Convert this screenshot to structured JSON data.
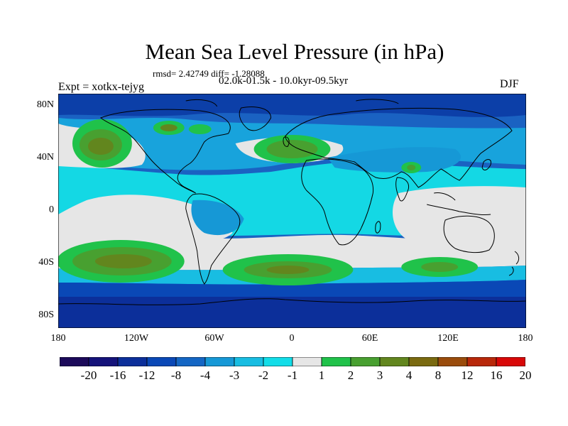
{
  "title": "Mean Sea Level Pressure (in hPa)",
  "stats": "rmsd= 2.42749 diff= -1.28088",
  "subtitle": "02.0k-01.5k - 10.0kyr-09.5kyr",
  "experiment": "Expt = xotkx-tejyg",
  "season": "DJF",
  "lat_labels": [
    "80N",
    "40N",
    "0",
    "40S",
    "80S"
  ],
  "lon_labels": [
    "180",
    "120W",
    "60W",
    "0",
    "60E",
    "120E",
    "180"
  ],
  "colorbar": {
    "tick_labels": [
      "-20",
      "-16",
      "-12",
      "-8",
      "-4",
      "-3",
      "-2",
      "-1",
      "1",
      "2",
      "3",
      "4",
      "8",
      "12",
      "16",
      "20"
    ],
    "colors": [
      "#1c0a5a",
      "#15137a",
      "#0c2f9a",
      "#0a48b6",
      "#1466c4",
      "#1698d6",
      "#18bde2",
      "#12dde8",
      "#e6e6e6",
      "#20c24a",
      "#48a030",
      "#62861e",
      "#7a6a10",
      "#9a4c0c",
      "#b8280a",
      "#d80808"
    ]
  },
  "colors": {
    "ocean_band_high": "#1248b0",
    "land_outline": "#000000"
  }
}
